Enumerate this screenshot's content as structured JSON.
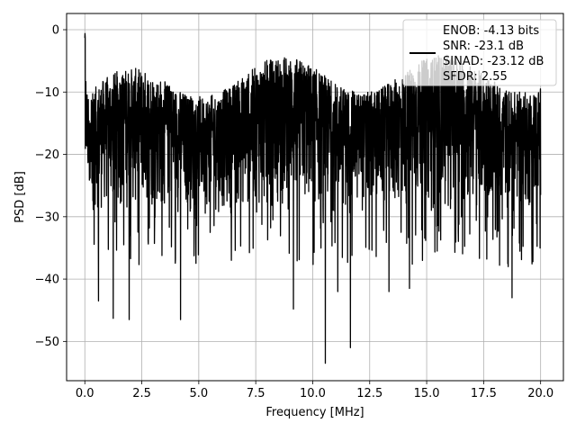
{
  "chart_data": {
    "type": "line",
    "xlabel": "Frequency [MHz]",
    "ylabel": "PSD [dB]",
    "xlim": [
      -0.8,
      21.0
    ],
    "ylim": [
      -56.3,
      2.6
    ],
    "x_ticks": [
      0.0,
      2.5,
      5.0,
      7.5,
      10.0,
      12.5,
      15.0,
      17.5,
      20.0
    ],
    "x_tick_labels": [
      "0.0",
      "2.5",
      "5.0",
      "7.5",
      "10.0",
      "12.5",
      "15.0",
      "17.5",
      "20.0"
    ],
    "y_ticks": [
      0,
      -10,
      -20,
      -30,
      -40,
      -50
    ],
    "y_tick_labels": [
      "0",
      "−10",
      "−20",
      "−30",
      "−40",
      "−50"
    ],
    "grid": true,
    "legend_position": "top-right",
    "line_color": "#000000",
    "series": [
      {
        "legend_lines": [
          "ENOB: -4.13 bits",
          "SNR: -23.1 dB",
          "SINAD: -23.12 dB",
          "SFDR: 2.55"
        ],
        "x_range": [
          0.0,
          20.0
        ],
        "peak": {
          "x": 0.0,
          "y": 0.0
        },
        "upper_envelope_db": -7,
        "lower_envelope_db": -30,
        "deep_nulls": [
          {
            "x": 0.6,
            "y": -43.5
          },
          {
            "x": 1.25,
            "y": -46.3
          },
          {
            "x": 1.95,
            "y": -46.5
          },
          {
            "x": 4.2,
            "y": -46.5
          },
          {
            "x": 9.15,
            "y": -44.8
          },
          {
            "x": 10.55,
            "y": -53.5
          },
          {
            "x": 11.1,
            "y": -42.0
          },
          {
            "x": 11.65,
            "y": -51.0
          },
          {
            "x": 13.35,
            "y": -42.0
          },
          {
            "x": 14.25,
            "y": -41.5
          },
          {
            "x": 18.75,
            "y": -43.0
          }
        ]
      }
    ]
  }
}
